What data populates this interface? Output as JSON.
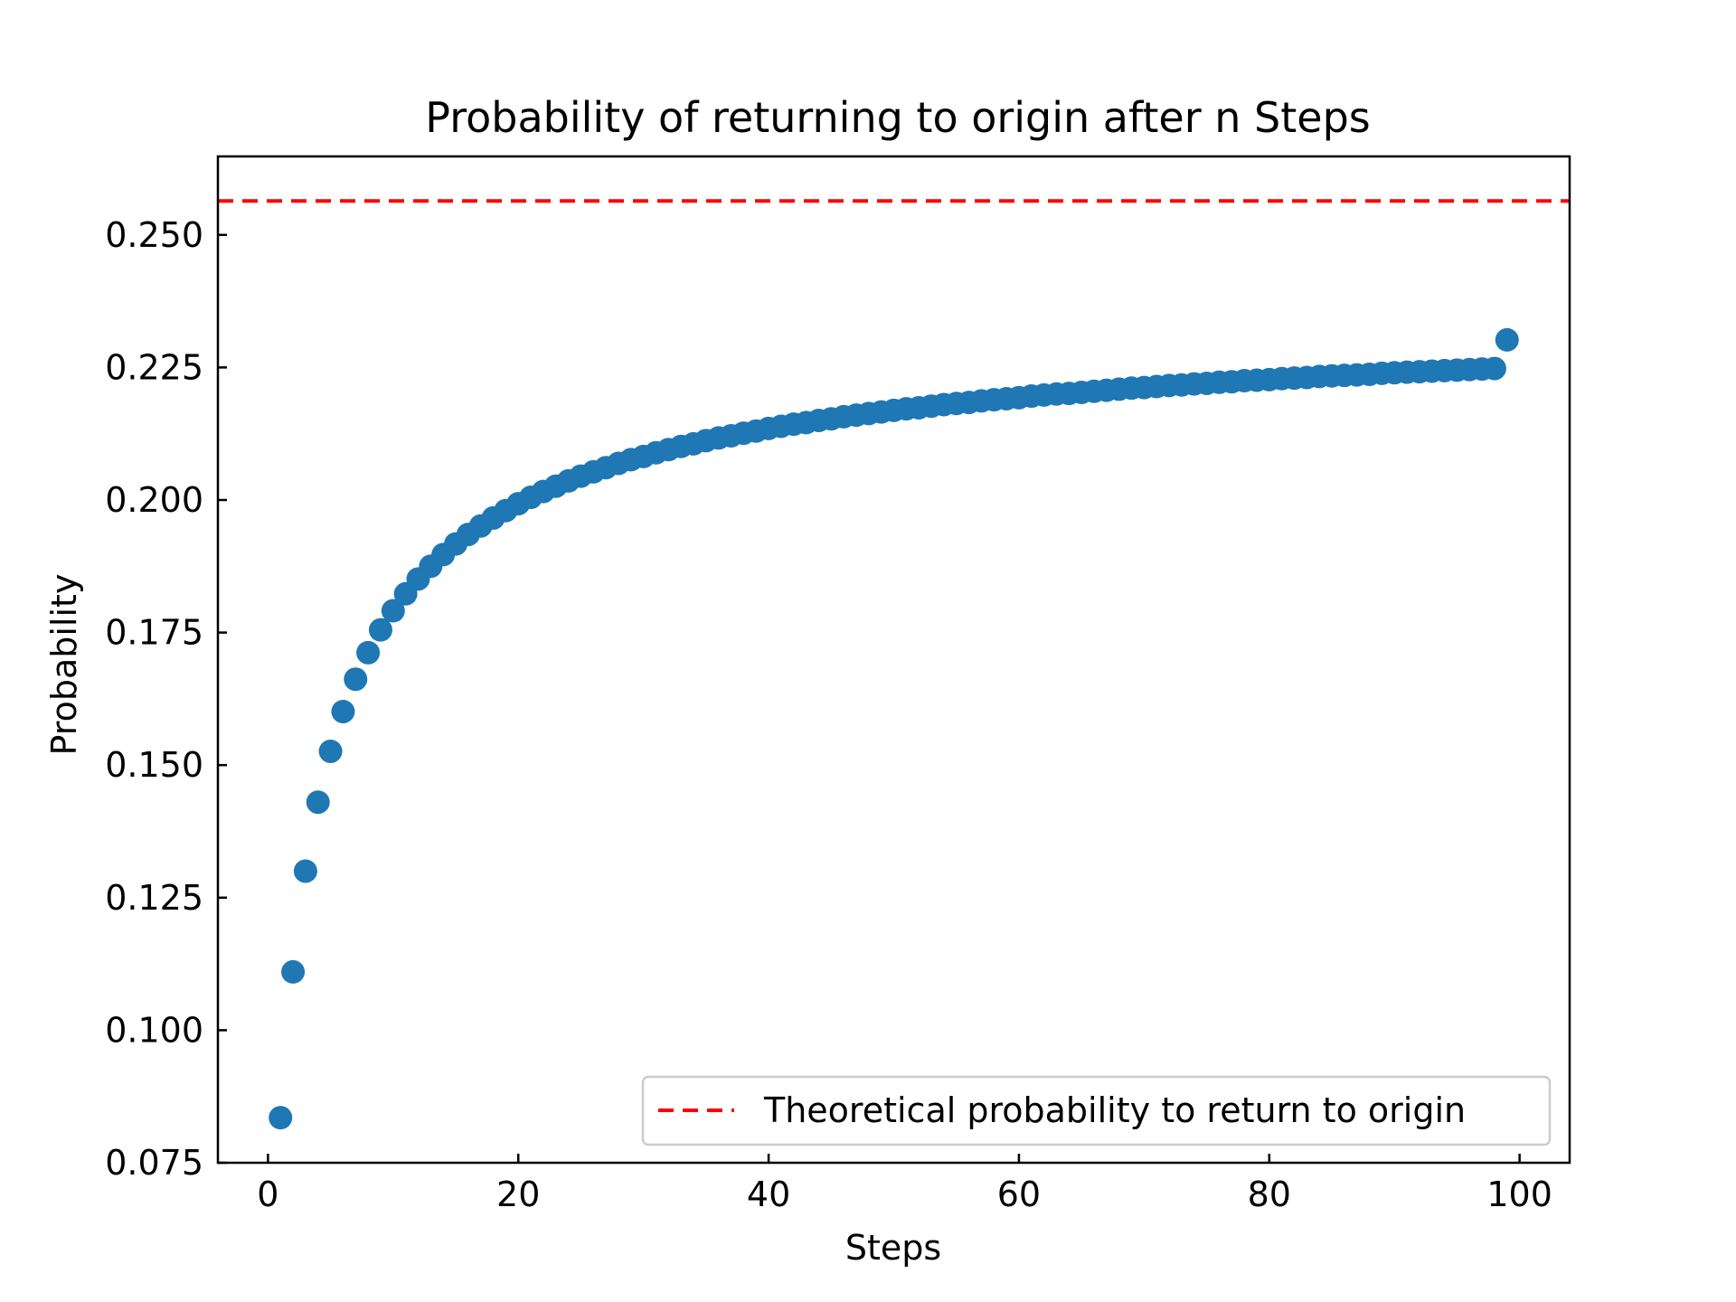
{
  "chart_data": {
    "type": "scatter",
    "title": "Probability of returning to origin after n Steps",
    "xlabel": "Steps",
    "ylabel": "Probability",
    "xlim": [
      -4,
      104
    ],
    "ylim": [
      0.075,
      0.2648
    ],
    "xticks": [
      "0",
      "20",
      "40",
      "60",
      "80",
      "100"
    ],
    "yticks": [
      "0.075",
      "0.100",
      "0.125",
      "0.150",
      "0.175",
      "0.200",
      "0.225",
      "0.250"
    ],
    "grid": false,
    "legend": {
      "placement": "lower-right",
      "entries": [
        "Theoretical probability to return to origin"
      ]
    },
    "colors": {
      "points": "#1f77b4",
      "reference_line": "#ff0000"
    },
    "reference_line": {
      "y": 0.2564,
      "style": "dashed"
    },
    "series": [
      {
        "x": [
          1,
          2,
          3,
          4,
          5,
          6,
          7,
          8,
          9,
          10,
          11,
          12,
          13,
          14,
          15,
          16,
          17,
          18,
          19,
          20,
          21,
          22,
          23,
          24,
          25,
          26,
          27,
          28,
          29,
          30,
          31,
          32,
          33,
          34,
          35,
          36,
          37,
          38,
          39,
          40,
          41,
          42,
          43,
          44,
          45,
          46,
          47,
          48,
          49,
          50,
          51,
          52,
          53,
          54,
          55,
          56,
          57,
          58,
          59,
          60,
          61,
          62,
          63,
          64,
          65,
          66,
          67,
          68,
          69,
          70,
          71,
          72,
          73,
          74,
          75,
          76,
          77,
          78,
          79,
          80,
          81,
          82,
          83,
          84,
          85,
          86,
          87,
          88,
          89,
          90,
          91,
          92,
          93,
          94,
          95,
          96,
          97,
          98,
          99
        ],
        "values": [
          0.0835,
          0.111,
          0.13,
          0.143,
          0.1526,
          0.1601,
          0.1662,
          0.1712,
          0.1755,
          0.1791,
          0.1823,
          0.1851,
          0.1875,
          0.1897,
          0.1917,
          0.1935,
          0.1951,
          0.1966,
          0.198,
          0.1993,
          0.2005,
          0.2016,
          0.2026,
          0.2036,
          0.2045,
          0.2053,
          0.2061,
          0.2069,
          0.2076,
          0.2082,
          0.2089,
          0.2095,
          0.2101,
          0.2106,
          0.2112,
          0.2117,
          0.2121,
          0.2126,
          0.213,
          0.2135,
          0.2139,
          0.2143,
          0.2146,
          0.215,
          0.2153,
          0.2157,
          0.216,
          0.2163,
          0.2166,
          0.2169,
          0.2172,
          0.2174,
          0.2177,
          0.218,
          0.2182,
          0.2184,
          0.2187,
          0.2189,
          0.2191,
          0.2193,
          0.2196,
          0.2198,
          0.22,
          0.2201,
          0.2203,
          0.2205,
          0.2207,
          0.2209,
          0.2211,
          0.2212,
          0.2214,
          0.2216,
          0.2217,
          0.2219,
          0.222,
          0.2222,
          0.2223,
          0.2225,
          0.2226,
          0.2227,
          0.2229,
          0.223,
          0.2231,
          0.2233,
          0.2234,
          0.2235,
          0.2236,
          0.2237,
          0.2239,
          0.224,
          0.2241,
          0.2242,
          0.2243,
          0.2244,
          0.2245,
          0.2246,
          0.2247,
          0.2248,
          0.2302
        ]
      }
    ]
  }
}
